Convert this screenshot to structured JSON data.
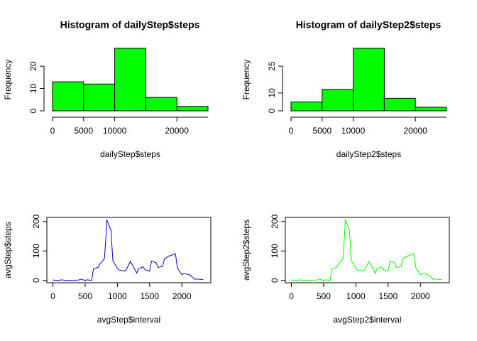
{
  "chart_data": [
    {
      "type": "histogram",
      "title": "Histogram of dailyStep$steps",
      "xlabel": "dailyStep$steps",
      "ylabel": "Frequency",
      "bins": [
        0,
        5000,
        10000,
        15000,
        20000,
        25000
      ],
      "values": [
        13,
        12,
        28,
        6,
        2
      ],
      "color": "#00ff00",
      "xlim": [
        0,
        25000
      ],
      "xticks": [
        0,
        5000,
        10000,
        20000
      ],
      "ylim": [
        0,
        28
      ],
      "yticks": [
        0,
        10,
        20
      ]
    },
    {
      "type": "histogram",
      "title": "Histogram of dailyStep2$steps",
      "xlabel": "dailyStep2$steps",
      "ylabel": "Frequency",
      "bins": [
        0,
        5000,
        10000,
        15000,
        20000,
        25000
      ],
      "values": [
        5,
        12,
        35,
        7,
        2
      ],
      "color": "#00ff00",
      "xlim": [
        0,
        25000
      ],
      "xticks": [
        0,
        5000,
        10000,
        20000
      ],
      "ylim": [
        0,
        35
      ],
      "yticks": [
        0,
        10,
        25
      ]
    },
    {
      "type": "line",
      "xlabel": "avgStep$interval",
      "ylabel": "avgStep$steps",
      "color": "#0000cd",
      "x": [
        0,
        30,
        100,
        130,
        200,
        230,
        300,
        330,
        400,
        430,
        500,
        530,
        600,
        630,
        700,
        730,
        800,
        830,
        835,
        900,
        930,
        1000,
        1030,
        1100,
        1130,
        1200,
        1230,
        1300,
        1330,
        1400,
        1430,
        1500,
        1530,
        1600,
        1630,
        1700,
        1730,
        1800,
        1830,
        1900,
        1930,
        2000,
        2030,
        2100,
        2130,
        2200,
        2230,
        2300,
        2330
      ],
      "values": [
        1.7,
        0.5,
        0.3,
        1.8,
        0,
        0,
        0,
        0.8,
        1.2,
        4,
        0,
        2,
        0,
        40,
        44,
        56,
        74,
        175,
        206,
        170,
        67,
        41,
        35,
        32,
        33,
        64,
        54,
        25,
        40,
        46,
        36,
        31,
        66,
        60,
        44,
        47,
        73,
        83,
        84,
        91,
        43,
        19,
        24,
        20,
        18,
        3.6,
        4.6,
        3.3,
        2.6
      ],
      "xlim": [
        -94,
        2449
      ],
      "xticks": [
        0,
        500,
        1000,
        1500,
        2000
      ],
      "ylim": [
        -8,
        214
      ],
      "yticks": [
        0,
        100,
        200
      ]
    },
    {
      "type": "line",
      "xlabel": "avgStep2$interval",
      "ylabel": "avgStep2$steps",
      "color": "#00ff00",
      "x": [
        0,
        30,
        100,
        130,
        200,
        230,
        300,
        330,
        400,
        430,
        500,
        530,
        600,
        630,
        700,
        730,
        800,
        830,
        835,
        900,
        930,
        1000,
        1030,
        1100,
        1130,
        1200,
        1230,
        1300,
        1330,
        1400,
        1430,
        1500,
        1530,
        1600,
        1630,
        1700,
        1730,
        1800,
        1830,
        1900,
        1930,
        2000,
        2030,
        2100,
        2130,
        2200,
        2230,
        2300,
        2330
      ],
      "values": [
        1.7,
        0.5,
        0.3,
        1.8,
        0,
        0,
        0,
        0.8,
        1.2,
        4,
        0,
        2,
        0,
        40,
        44,
        56,
        74,
        175,
        206,
        170,
        67,
        41,
        35,
        32,
        33,
        64,
        54,
        25,
        40,
        46,
        36,
        31,
        66,
        60,
        44,
        47,
        73,
        83,
        84,
        91,
        43,
        19,
        24,
        20,
        18,
        3.6,
        4.6,
        3.3,
        2.6
      ],
      "xlim": [
        -94,
        2449
      ],
      "xticks": [
        0,
        500,
        1000,
        1500,
        2000
      ],
      "ylim": [
        -8,
        214
      ],
      "yticks": [
        0,
        100,
        200
      ]
    }
  ]
}
